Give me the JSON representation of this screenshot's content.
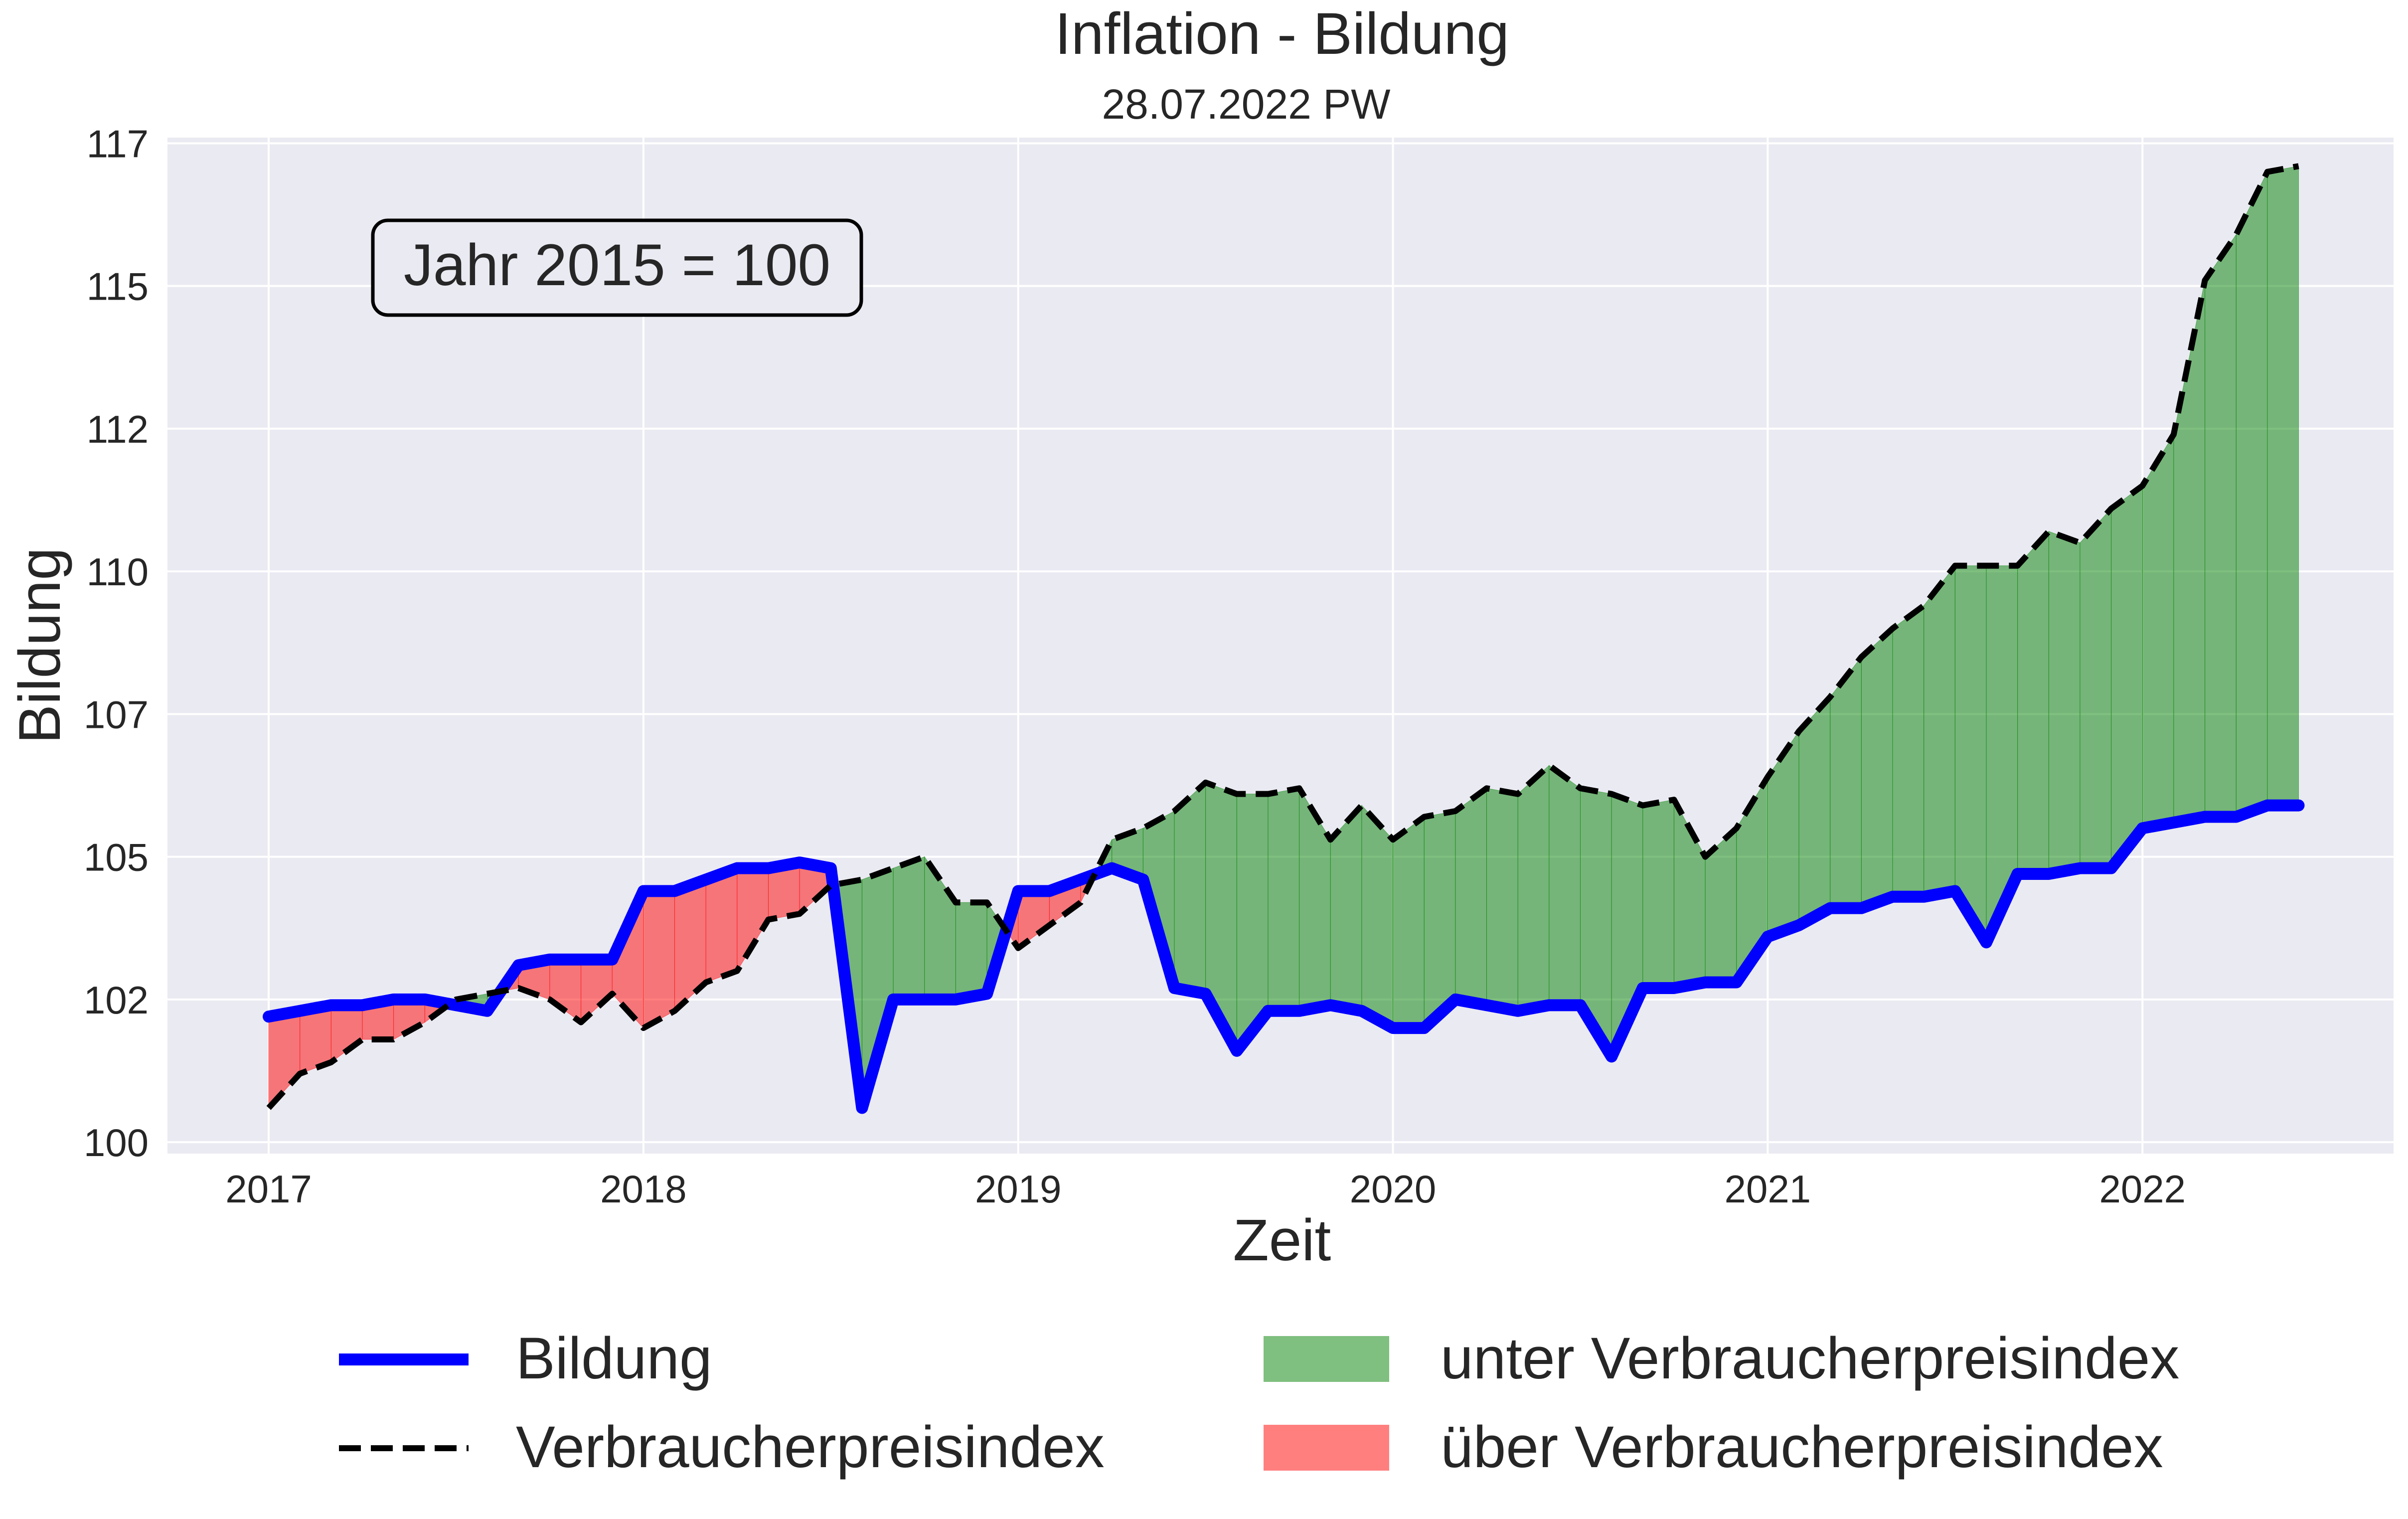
{
  "chart_data": {
    "type": "line",
    "title": "Inflation - Bildung",
    "subtitle": "28.07.2022 PW",
    "xlabel": "Zeit",
    "ylabel": "Bildung",
    "annotation": "Jahr 2015 = 100",
    "xlim": [
      2016.73,
      2022.67
    ],
    "ylim": [
      99.8,
      117.6
    ],
    "x_ticks": [
      {
        "label": "2017",
        "value": 2017
      },
      {
        "label": "2018",
        "value": 2018
      },
      {
        "label": "2019",
        "value": 2019
      },
      {
        "label": "2020",
        "value": 2020
      },
      {
        "label": "2021",
        "value": 2021
      },
      {
        "label": "2022",
        "value": 2022
      }
    ],
    "y_ticks": [
      {
        "label": "100",
        "value": 100
      },
      {
        "label": "102",
        "value": 102.5
      },
      {
        "label": "105",
        "value": 105
      },
      {
        "label": "107",
        "value": 107.5
      },
      {
        "label": "110",
        "value": 110
      },
      {
        "label": "112",
        "value": 112.5
      },
      {
        "label": "115",
        "value": 115
      },
      {
        "label": "117",
        "value": 117.5
      }
    ],
    "grid": true,
    "legend_position": "bottom",
    "x_start": "2017-01",
    "x_end": "2022-06",
    "series": [
      {
        "name": "Bildung",
        "color": "#0000ff",
        "style": "solid",
        "values": [
          102.2,
          102.3,
          102.4,
          102.4,
          102.5,
          102.5,
          102.4,
          102.3,
          103.1,
          103.2,
          103.2,
          103.2,
          104.4,
          104.4,
          104.6,
          104.8,
          104.8,
          104.9,
          104.8,
          100.6,
          102.5,
          102.5,
          102.5,
          102.6,
          104.4,
          104.4,
          104.6,
          104.8,
          104.6,
          102.7,
          102.6,
          101.6,
          102.3,
          102.3,
          102.4,
          102.3,
          102.0,
          102.0,
          102.5,
          102.4,
          102.3,
          102.4,
          102.4,
          101.5,
          102.7,
          102.7,
          102.8,
          102.8,
          103.6,
          103.8,
          104.1,
          104.1,
          104.3,
          104.3,
          104.4,
          103.5,
          104.7,
          104.7,
          104.8,
          104.8,
          105.5,
          105.6,
          105.7,
          105.7,
          105.9,
          105.9
        ]
      },
      {
        "name": "Verbraucherpreisindex",
        "color": "#000000",
        "style": "dashed",
        "values": [
          100.6,
          101.2,
          101.4,
          101.8,
          101.8,
          102.1,
          102.5,
          102.6,
          102.7,
          102.5,
          102.1,
          102.6,
          102.0,
          102.3,
          102.8,
          103.0,
          103.9,
          104.0,
          104.5,
          104.6,
          104.8,
          105.0,
          104.2,
          104.2,
          103.4,
          103.8,
          104.2,
          105.3,
          105.5,
          105.8,
          106.3,
          106.1,
          106.1,
          106.2,
          105.3,
          105.9,
          105.3,
          105.7,
          105.8,
          106.2,
          106.1,
          106.6,
          106.2,
          106.1,
          105.9,
          106.0,
          105.0,
          105.5,
          106.4,
          107.2,
          107.8,
          108.5,
          109.0,
          109.4,
          110.1,
          110.1,
          110.1,
          110.7,
          110.5,
          111.1,
          111.5,
          112.4,
          115.1,
          115.9,
          117.0,
          117.1
        ]
      }
    ],
    "fills": [
      {
        "name": "unter Verbraucherpreisindex",
        "color": "#008000",
        "condition": "Bildung < Verbraucherpreisindex"
      },
      {
        "name": "über Verbraucherpreisindex",
        "color": "#ff0000",
        "condition": "Bildung > Verbraucherpreisindex"
      }
    ]
  },
  "colors": {
    "plot_background": "#eaeaf2",
    "grid": "#ffffff",
    "green_fill": "#008000",
    "red_fill": "#ff0000",
    "green_alpha": 0.5,
    "red_alpha": 0.5
  }
}
